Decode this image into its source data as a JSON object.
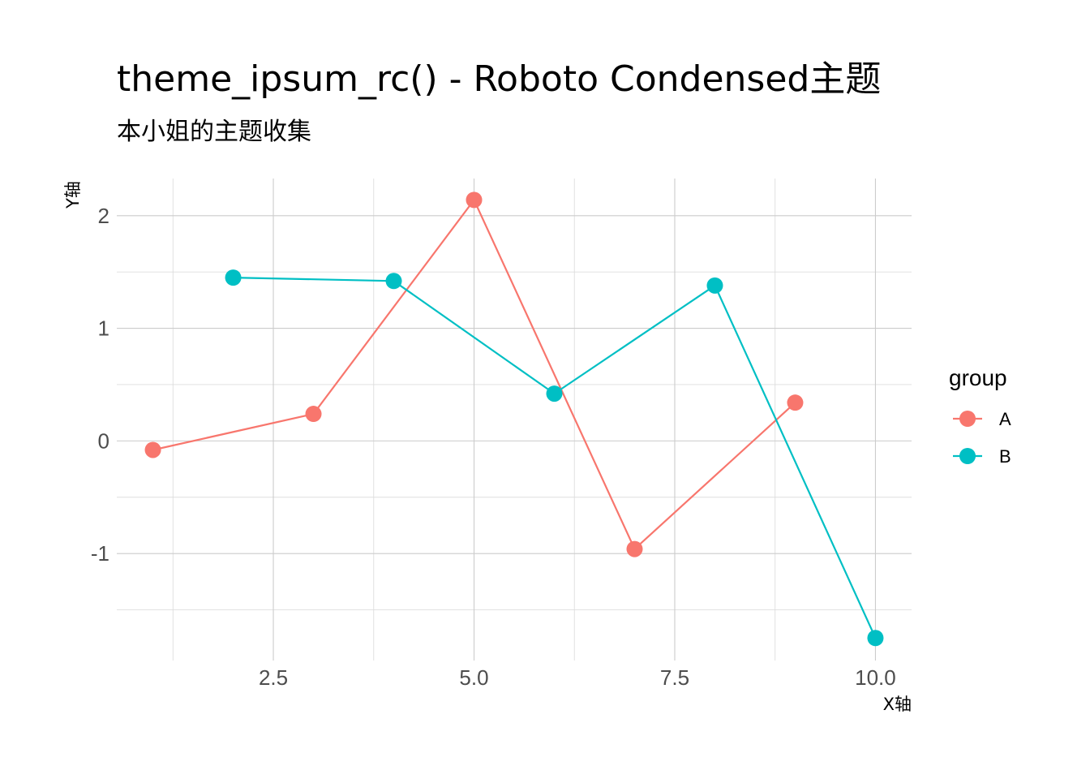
{
  "chart_data": {
    "type": "line",
    "title": "theme_ipsum_rc() - Roboto Condensed主题",
    "subtitle": "本小姐的主题收集",
    "xlabel": "X轴",
    "ylabel": "Y轴",
    "xlim": [
      0.55,
      10.45
    ],
    "ylim": [
      -1.95,
      2.33
    ],
    "x_ticks": [
      2.5,
      5.0,
      7.5,
      10.0
    ],
    "x_tick_labels": [
      "2.5",
      "5.0",
      "7.5",
      "10.0"
    ],
    "x_minor_ticks": [
      1.25,
      3.75,
      6.25,
      8.75
    ],
    "y_ticks": [
      -1,
      0,
      1,
      2
    ],
    "y_tick_labels": [
      "-1",
      "0",
      "1",
      "2"
    ],
    "y_minor_ticks": [
      -1.5,
      -0.5,
      0.5,
      1.5
    ],
    "grid": true,
    "legend": {
      "title": "group",
      "position": "right"
    },
    "series": [
      {
        "name": "A",
        "color": "#F8766D",
        "x": [
          1,
          3,
          5,
          7,
          9
        ],
        "y": [
          -0.08,
          0.24,
          2.14,
          -0.96,
          0.34
        ]
      },
      {
        "name": "B",
        "color": "#00BFC4",
        "x": [
          2,
          4,
          6,
          8,
          10
        ],
        "y": [
          1.45,
          1.42,
          0.42,
          1.38,
          -1.75
        ]
      }
    ]
  }
}
